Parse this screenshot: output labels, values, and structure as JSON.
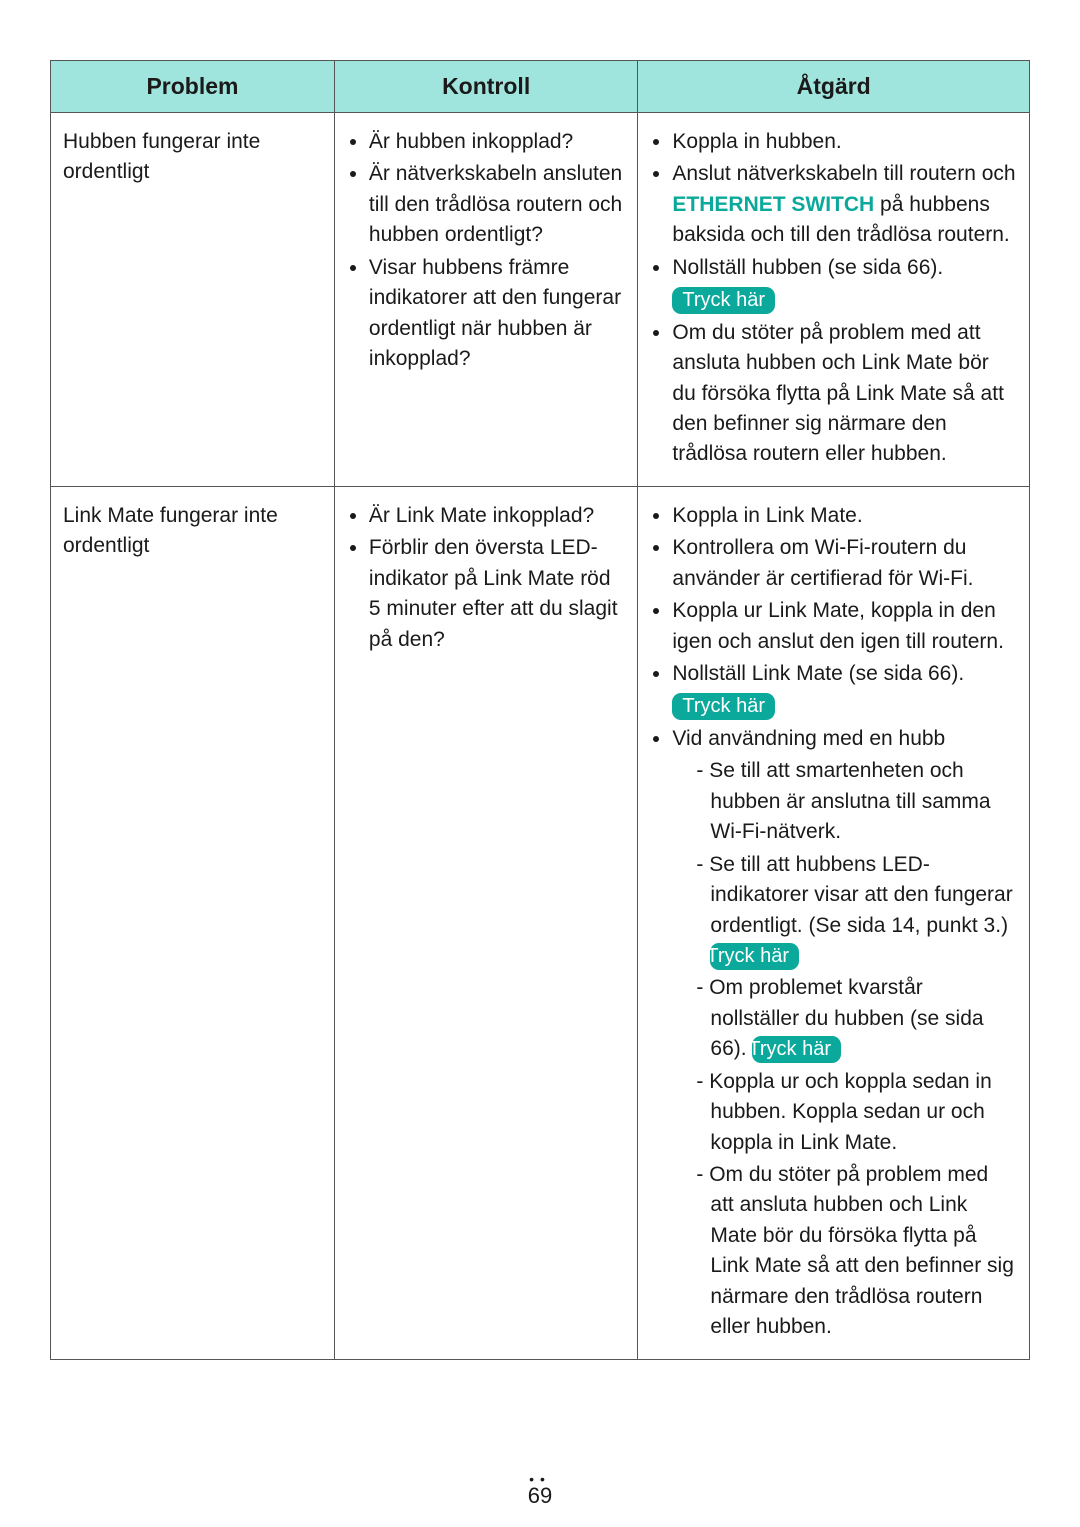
{
  "colors": {
    "header_bg": "#9fe5de",
    "teal": "#0aa99b",
    "border": "#555555",
    "text": "#1a1a1a",
    "page_bg": "#ffffff"
  },
  "table": {
    "headers": {
      "problem": "Problem",
      "kontroll": "Kontroll",
      "atgard": "Åtgärd"
    },
    "rows": [
      {
        "problem": "Hubben fungerar inte ordentligt",
        "kontroll": [
          "Är hubben inkopplad?",
          "Är nätverkskabeln ansluten till den trådlösa routern och hubben ordentligt?",
          "Visar hubbens främre indikatorer att den fungerar ordentligt när hubben är inkopplad?"
        ],
        "atgard_html": [
          {
            "type": "li",
            "text": "Koppla in hubben."
          },
          {
            "type": "li",
            "parts": [
              {
                "t": "Anslut nätverkskabeln till routern och "
              },
              {
                "t": "ETHERNET SWITCH",
                "cls": "link-teal"
              },
              {
                "t": " på hubbens baksida och till den trådlösa routern."
              }
            ]
          },
          {
            "type": "li",
            "parts": [
              {
                "t": "Nollställ hubben (se sida 66)."
              },
              {
                "break": true
              },
              {
                "pill": "Tryck här"
              }
            ]
          },
          {
            "type": "li",
            "text": "Om du stöter på problem med att ansluta hubben och Link Mate bör du försöka flytta på Link Mate så att den befinner sig närmare den trådlösa routern eller hubben."
          }
        ]
      },
      {
        "problem": "Link Mate fungerar inte ordentligt",
        "kontroll": [
          "Är Link Mate inkopplad?",
          "Förblir den översta LED-indikator på Link Mate röd 5 minuter efter att du slagit på den?"
        ],
        "atgard_html": [
          {
            "type": "li",
            "text": "Koppla in Link Mate."
          },
          {
            "type": "li",
            "text": "Kontrollera om Wi-Fi-routern du använder är certifierad för Wi-Fi."
          },
          {
            "type": "li",
            "text": "Koppla ur Link Mate, koppla in den igen och anslut den igen till routern."
          },
          {
            "type": "li",
            "parts": [
              {
                "t": "Nollställ Link Mate (se sida 66)."
              },
              {
                "break": true
              },
              {
                "pill": "Tryck här"
              }
            ]
          },
          {
            "type": "li",
            "text": "Vid användning med en hubb",
            "sub": [
              {
                "text": "Se till att smartenheten och hubben är anslutna till samma Wi-Fi-nätverk."
              },
              {
                "parts": [
                  {
                    "t": "Se till att hubbens LED-indikatorer visar att den fungerar ordentligt. (Se sida 14, punkt 3.) "
                  },
                  {
                    "pill": "Tryck här"
                  }
                ]
              },
              {
                "parts": [
                  {
                    "t": "Om problemet kvarstår nollställer du hubben (se sida 66). "
                  },
                  {
                    "pill": "Tryck här"
                  }
                ]
              },
              {
                "text": "Koppla ur och koppla sedan in hubben. Koppla sedan ur och koppla in Link Mate."
              },
              {
                "text": "Om du stöter på problem med att ansluta hubben och Link Mate bör du försöka flytta på Link Mate så att den befinner sig närmare den trådlösa routern eller hubben."
              }
            ]
          }
        ]
      }
    ]
  },
  "page_number": "69"
}
